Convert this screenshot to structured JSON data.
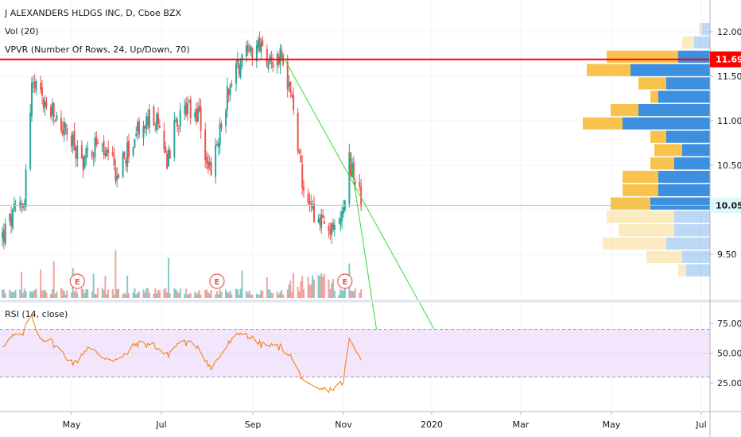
{
  "legend": {
    "title": "J ALEXANDERS HLDGS INC, D, Cboe BZX",
    "vol": "Vol (20)",
    "vpvr": "VPVR (Number Of Rows, 24, Up/Down, 70)",
    "rsi": "RSI (14, close)"
  },
  "colors": {
    "up": "#26a69a",
    "down": "#ef5350",
    "vol_up": "#80cbc4",
    "vol_down": "#f3a19e",
    "vpvr_up": "#3d8fe0",
    "vpvr_down": "#f7c34c",
    "hline": "#ff0000",
    "trend": "#33dd33",
    "last_line": "#80deea",
    "rsi_line": "#f57c00",
    "rsi_band": "#f3e5fb",
    "earnings": "#ef5350"
  },
  "chart_data": [
    {
      "type": "candlestick",
      "title": "J ALEXANDERS HLDGS INC, D, Cboe BZX",
      "x_ticks": [
        "May",
        "Jul",
        "Sep",
        "Nov",
        "2020",
        "Mar",
        "May",
        "Jul"
      ],
      "y_ticks": [
        "12.00",
        "11.50",
        "11.00",
        "10.50",
        "10.00",
        "9.50"
      ],
      "ylim": [
        9.0,
        12.3
      ],
      "start_date": "2019-03-13",
      "end_date": "2019-11-12",
      "anchors": [
        [
          "2019-03-13",
          9.7
        ],
        [
          "2019-03-28",
          10.15
        ],
        [
          "2019-04-02",
          11.4
        ],
        [
          "2019-04-12",
          11.15
        ],
        [
          "2019-04-24",
          10.9
        ],
        [
          "2019-05-06",
          10.55
        ],
        [
          "2019-05-16",
          10.75
        ],
        [
          "2019-05-30",
          10.4
        ],
        [
          "2019-06-12",
          10.85
        ],
        [
          "2019-06-24",
          11.05
        ],
        [
          "2019-07-03",
          10.6
        ],
        [
          "2019-07-12",
          11.1
        ],
        [
          "2019-07-24",
          11.05
        ],
        [
          "2019-08-02",
          10.35
        ],
        [
          "2019-08-14",
          11.4
        ],
        [
          "2019-08-26",
          11.85
        ],
        [
          "2019-09-09",
          11.75
        ],
        [
          "2019-09-18",
          11.7
        ],
        [
          "2019-09-24",
          11.35
        ],
        [
          "2019-09-30",
          10.75
        ],
        [
          "2019-10-04",
          10.1
        ],
        [
          "2019-10-16",
          9.9
        ],
        [
          "2019-10-24",
          9.7
        ],
        [
          "2019-10-31",
          10.05
        ],
        [
          "2019-11-04",
          10.55
        ],
        [
          "2019-11-08",
          10.35
        ],
        [
          "2019-11-12",
          10.05
        ]
      ],
      "last_price": "10.05",
      "hline_label": "11.69",
      "hline_value": 11.69,
      "trendlines": [
        {
          "from": [
            "2019-09-19",
            11.75
          ],
          "to": [
            "2020-01-01",
            8.65
          ]
        },
        {
          "from": [
            "2019-11-04",
            10.65
          ],
          "to": [
            "2019-11-23",
            8.6
          ]
        }
      ],
      "earnings_label": "E",
      "earnings_dates": [
        "2019-05-03",
        "2019-08-06",
        "2019-11-01"
      ]
    },
    {
      "type": "bar",
      "name": "VPVR (Number Of Rows, 24, Up/Down, 70)",
      "rows": [
        {
          "price": 12.03,
          "up": 0.1,
          "down": 0.04,
          "va": false
        },
        {
          "price": 11.88,
          "up": 0.2,
          "down": 0.15,
          "va": false
        },
        {
          "price": 11.72,
          "up": 0.4,
          "down": 0.9,
          "va": true
        },
        {
          "price": 11.57,
          "up": 1.0,
          "down": 0.55,
          "va": true
        },
        {
          "price": 11.42,
          "up": 0.55,
          "down": 0.35,
          "va": true
        },
        {
          "price": 11.27,
          "up": 0.65,
          "down": 0.1,
          "va": true
        },
        {
          "price": 11.12,
          "up": 0.9,
          "down": 0.35,
          "va": true
        },
        {
          "price": 10.97,
          "up": 1.1,
          "down": 0.5,
          "va": true
        },
        {
          "price": 10.82,
          "up": 0.55,
          "down": 0.2,
          "va": true
        },
        {
          "price": 10.67,
          "up": 0.35,
          "down": 0.35,
          "va": true
        },
        {
          "price": 10.52,
          "up": 0.45,
          "down": 0.3,
          "va": true
        },
        {
          "price": 10.37,
          "up": 0.65,
          "down": 0.45,
          "va": true
        },
        {
          "price": 10.22,
          "up": 0.65,
          "down": 0.45,
          "va": true
        },
        {
          "price": 10.07,
          "up": 0.75,
          "down": 0.5,
          "va": true
        },
        {
          "price": 9.92,
          "up": 0.45,
          "down": 0.85,
          "va": false
        },
        {
          "price": 9.77,
          "up": 0.45,
          "down": 0.7,
          "va": false
        },
        {
          "price": 9.62,
          "up": 0.55,
          "down": 0.8,
          "va": false
        },
        {
          "price": 9.47,
          "up": 0.35,
          "down": 0.45,
          "va": false
        },
        {
          "price": 9.32,
          "up": 0.3,
          "down": 0.1,
          "va": false
        }
      ]
    },
    {
      "type": "line",
      "name": "RSI (14, close)",
      "y_ticks": [
        "75.00",
        "50.00",
        "25.00"
      ],
      "ylim": [
        10,
        90
      ],
      "band": [
        30,
        70
      ],
      "anchors": [
        [
          "2019-03-13",
          57
        ],
        [
          "2019-03-20",
          64
        ],
        [
          "2019-03-27",
          65
        ],
        [
          "2019-04-01",
          82
        ],
        [
          "2019-04-08",
          63
        ],
        [
          "2019-04-15",
          60
        ],
        [
          "2019-04-23",
          50
        ],
        [
          "2019-05-01",
          41
        ],
        [
          "2019-05-10",
          55
        ],
        [
          "2019-05-20",
          47
        ],
        [
          "2019-06-01",
          44
        ],
        [
          "2019-06-12",
          58
        ],
        [
          "2019-06-24",
          57
        ],
        [
          "2019-07-03",
          48
        ],
        [
          "2019-07-12",
          60
        ],
        [
          "2019-07-24",
          56
        ],
        [
          "2019-08-02",
          37
        ],
        [
          "2019-08-14",
          58
        ],
        [
          "2019-08-23",
          68
        ],
        [
          "2019-09-05",
          57
        ],
        [
          "2019-09-18",
          55
        ],
        [
          "2019-09-24",
          50
        ],
        [
          "2019-09-30",
          35
        ],
        [
          "2019-10-07",
          22
        ],
        [
          "2019-10-14",
          19
        ],
        [
          "2019-10-24",
          20
        ],
        [
          "2019-10-31",
          26
        ],
        [
          "2019-11-04",
          62
        ],
        [
          "2019-11-08",
          52
        ],
        [
          "2019-11-12",
          46
        ]
      ]
    }
  ]
}
